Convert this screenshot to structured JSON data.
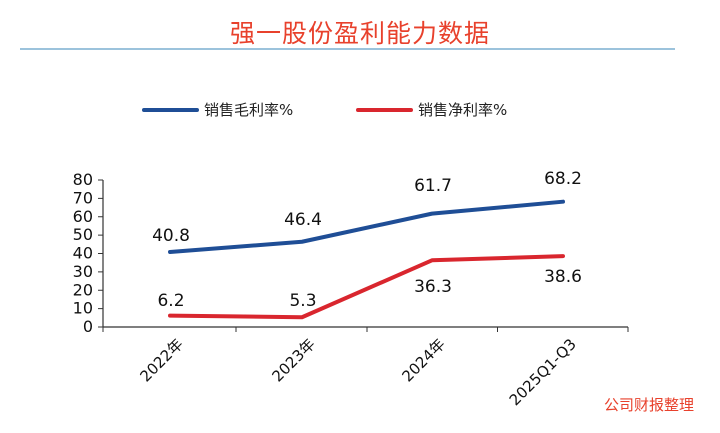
{
  "header": {
    "title": "强一股份盈利能力数据"
  },
  "watermark": "公司财报整理",
  "chart_data": {
    "type": "line",
    "categories": [
      "2022年",
      "2023年",
      "2024年",
      "2025Q1-Q3"
    ],
    "series": [
      {
        "name": "销售毛利率%",
        "values": [
          40.8,
          46.4,
          61.7,
          68.2
        ],
        "color": "#1f4e96",
        "labels": [
          "40.8",
          "46.4",
          "61.7",
          "68.2"
        ]
      },
      {
        "name": "销售净利率%",
        "values": [
          6.2,
          5.3,
          36.3,
          38.6
        ],
        "color": "#d9262e",
        "labels": [
          "6.2",
          "5.3",
          "36.3",
          "38.6"
        ]
      }
    ],
    "ylim": [
      0,
      80
    ],
    "yticks": [
      "0",
      "10",
      "20",
      "30",
      "40",
      "50",
      "60",
      "70",
      "80"
    ],
    "legend_position": "top",
    "grid": false
  }
}
